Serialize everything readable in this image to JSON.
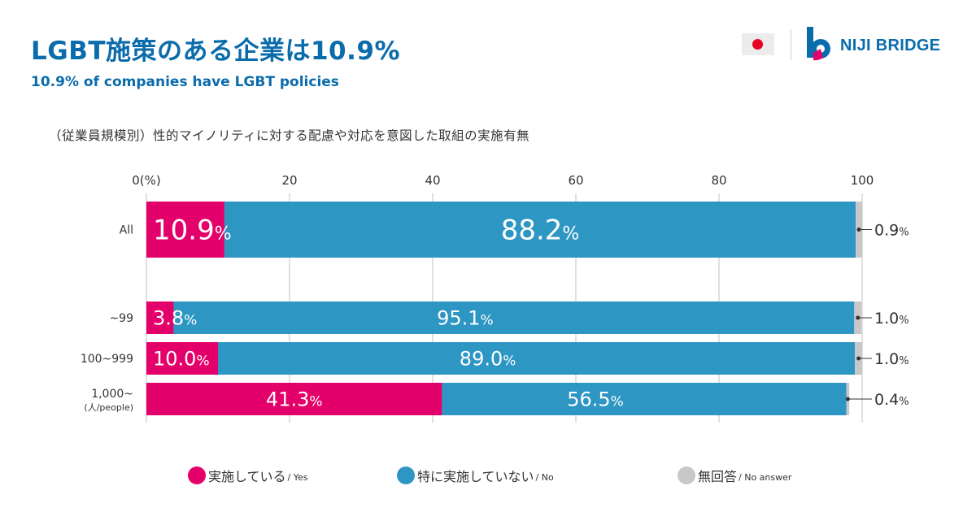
{
  "header": {
    "title": "LGBT施策のある企業は10.9%",
    "subtitle": "10.9% of companies have LGBT policies",
    "flag_icon": "japan-flag-icon",
    "brand_name": "NIJI BRIDGE"
  },
  "colors": {
    "title": "#0b6cac",
    "yes": "#e4006a",
    "no": "#2e96c3",
    "no_answer": "#c8c8c8",
    "grid": "#e0e0e0"
  },
  "chart_data": {
    "type": "bar",
    "orientation": "horizontal-stacked",
    "title": "（従業員規模別）性的マイノリティに対する配慮や対応を意図した取組の実施有無",
    "xlabel": "",
    "ylabel": "",
    "xlim": [
      0,
      100
    ],
    "x_ticks": [
      "0(%)",
      "20",
      "40",
      "60",
      "80",
      "100"
    ],
    "x_tick_values": [
      0,
      20,
      40,
      60,
      80,
      100
    ],
    "grid": true,
    "legend_position": "bottom",
    "categories": [
      {
        "label": "All",
        "sublabel": ""
      },
      {
        "label": "~99",
        "sublabel": ""
      },
      {
        "label": "100~999",
        "sublabel": ""
      },
      {
        "label": "1,000~",
        "sublabel": "(人/people)"
      }
    ],
    "series": [
      {
        "name": "実施している",
        "name_en": "/ Yes",
        "color_key": "yes",
        "values": [
          10.9,
          3.8,
          10.0,
          41.3
        ]
      },
      {
        "name": "特に実施していない",
        "name_en": "/ No",
        "color_key": "no",
        "values": [
          88.2,
          95.1,
          89.0,
          56.5
        ]
      },
      {
        "name": "無回答",
        "name_en": "/ No answer",
        "color_key": "no_answer",
        "values": [
          0.9,
          1.0,
          1.0,
          0.4
        ]
      }
    ],
    "value_suffix": "%"
  }
}
